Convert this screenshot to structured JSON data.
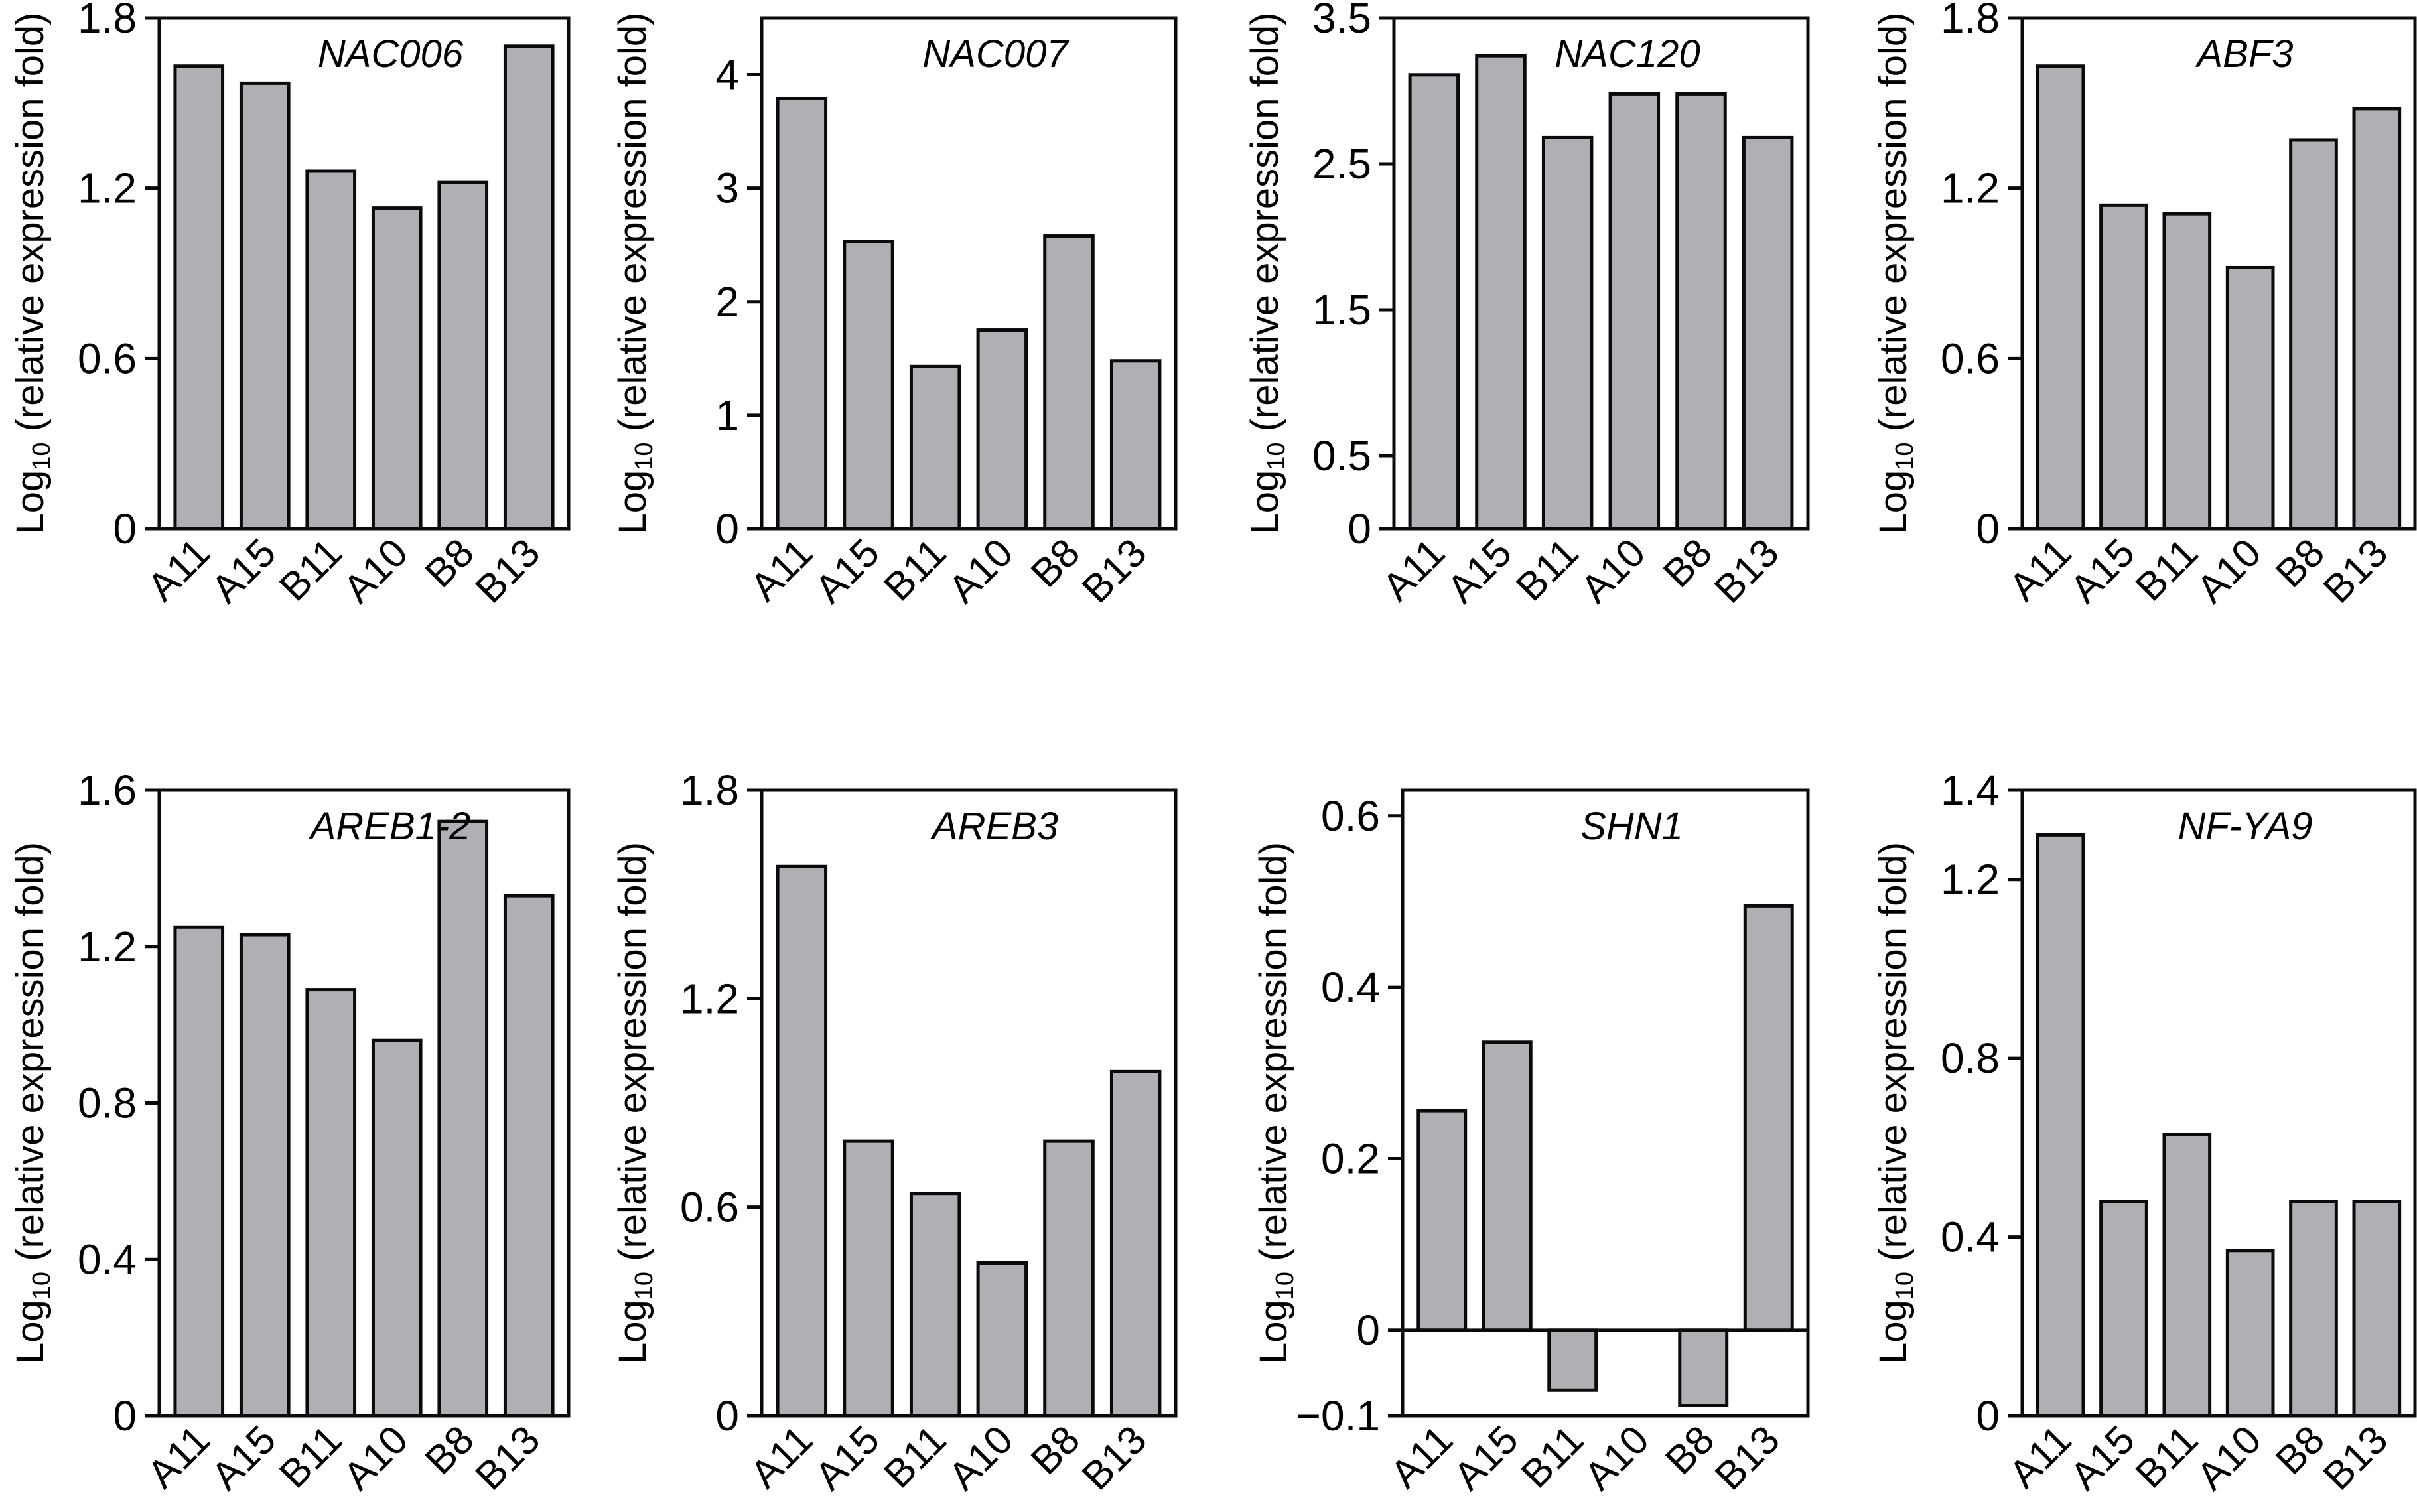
{
  "figure": {
    "ylabel_main": "Log",
    "ylabel_sub": "10",
    "ylabel_rest": " (relative expression fold)",
    "bar_color": "#b1afb4",
    "stroke_color": "#0a0a0a"
  },
  "chart_data": [
    {
      "type": "bar",
      "title": "NAC006",
      "categories": [
        "A11",
        "A15",
        "B11",
        "A10",
        "B8",
        "B13"
      ],
      "values": [
        1.63,
        1.57,
        1.26,
        1.13,
        1.22,
        1.7
      ],
      "ylim": [
        0,
        1.8
      ],
      "yticks": [
        0,
        0.6,
        1.2,
        1.8
      ],
      "ytick_labels": [
        "0",
        "0.6",
        "1.2",
        "1.8"
      ],
      "xlabel": "",
      "ylabel": "Log10 (relative expression fold)",
      "grid": false
    },
    {
      "type": "bar",
      "title": "NAC007",
      "categories": [
        "A11",
        "A15",
        "B11",
        "A10",
        "B8",
        "B13"
      ],
      "values": [
        3.79,
        2.53,
        1.43,
        1.75,
        2.58,
        1.48
      ],
      "ylim": [
        0,
        4.5
      ],
      "yticks": [
        0,
        1,
        2,
        3,
        4
      ],
      "ytick_labels": [
        "0",
        "1",
        "2",
        "3",
        "4"
      ],
      "xlabel": "",
      "ylabel": "Log10 (relative expression fold)",
      "grid": false
    },
    {
      "type": "bar",
      "title": "NAC120",
      "categories": [
        "A11",
        "A15",
        "B11",
        "A10",
        "B8",
        "B13"
      ],
      "values": [
        3.11,
        3.24,
        2.68,
        2.98,
        2.98,
        2.68
      ],
      "ylim": [
        0,
        3.5
      ],
      "yticks": [
        0,
        0.5,
        1.5,
        2.5,
        3.5
      ],
      "ytick_labels": [
        "0",
        "0.5",
        "1.5",
        "2.5",
        "3.5"
      ],
      "xlabel": "",
      "ylabel": "Log10 (relative expression fold)",
      "grid": false
    },
    {
      "type": "bar",
      "title": "ABF3",
      "categories": [
        "A11",
        "A15",
        "B11",
        "A10",
        "B8",
        "B13"
      ],
      "values": [
        1.63,
        1.14,
        1.11,
        0.92,
        1.37,
        1.48
      ],
      "ylim": [
        0,
        1.8
      ],
      "yticks": [
        0,
        0.6,
        1.2,
        1.8
      ],
      "ytick_labels": [
        "0",
        "0.6",
        "1.2",
        "1.8"
      ],
      "xlabel": "",
      "ylabel": "Log10 (relative expression fold)",
      "grid": false
    },
    {
      "type": "bar",
      "title": "AREB1-2",
      "categories": [
        "A11",
        "A15",
        "B11",
        "A10",
        "B8",
        "B13"
      ],
      "values": [
        1.25,
        1.23,
        1.09,
        0.96,
        1.52,
        1.33
      ],
      "ylim": [
        0,
        1.6
      ],
      "yticks": [
        0,
        0.4,
        0.8,
        1.2,
        1.6
      ],
      "ytick_labels": [
        "0",
        "0.4",
        "0.8",
        "1.2",
        "1.6"
      ],
      "xlabel": "",
      "ylabel": "Log10 (relative expression fold)",
      "grid": false
    },
    {
      "type": "bar",
      "title": "AREB3",
      "categories": [
        "A11",
        "A15",
        "B11",
        "A10",
        "B8",
        "B13"
      ],
      "values": [
        1.58,
        0.79,
        0.64,
        0.44,
        0.79,
        0.99
      ],
      "ylim": [
        0,
        1.8
      ],
      "yticks": [
        0,
        0.6,
        1.2,
        1.8
      ],
      "ytick_labels": [
        "0",
        "0.6",
        "1.2",
        "1.8"
      ],
      "xlabel": "",
      "ylabel": "Log10 (relative expression fold)",
      "grid": false
    },
    {
      "type": "bar",
      "title": "SHN1",
      "categories": [
        "A11",
        "A15",
        "B11",
        "A10",
        "B8",
        "B13"
      ],
      "values": [
        0.256,
        0.336,
        -0.07,
        0.0,
        -0.088,
        0.495
      ],
      "ylim": [
        -0.1,
        0.63
      ],
      "yticks": [
        -0.1,
        0,
        0.2,
        0.4,
        0.6
      ],
      "ytick_labels": [
        "−0.1",
        "0",
        "0.2",
        "0.4",
        "0.6"
      ],
      "zero_line": true,
      "xlabel": "",
      "ylabel": "Log10 (relative expression fold)",
      "grid": false
    },
    {
      "type": "bar",
      "title": "NF-YA9",
      "categories": [
        "A11",
        "A15",
        "B11",
        "A10",
        "B8",
        "B13"
      ],
      "values": [
        1.3,
        0.48,
        0.63,
        0.37,
        0.48,
        0.48
      ],
      "ylim": [
        0,
        1.4
      ],
      "yticks": [
        0,
        0.4,
        0.8,
        1.2,
        1.4
      ],
      "ytick_labels": [
        "0",
        "0.4",
        "0.8",
        "1.2",
        "1.4"
      ],
      "xlabel": "",
      "ylabel": "Log10 (relative expression fold)",
      "grid": false
    }
  ]
}
